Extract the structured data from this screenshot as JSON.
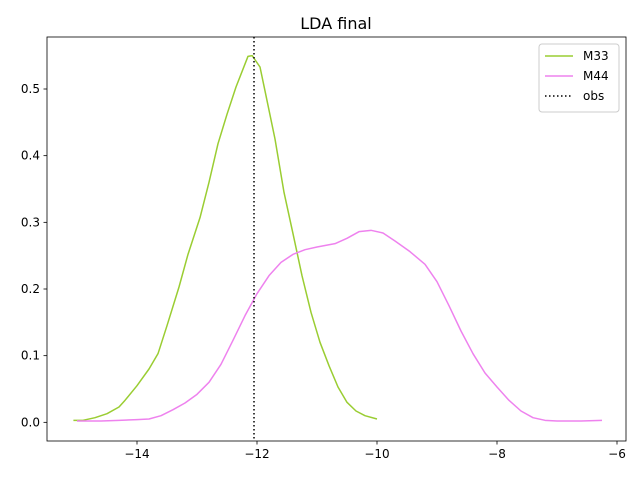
{
  "chart_data": {
    "type": "line",
    "title": "LDA final",
    "xlabel": "",
    "ylabel": "",
    "xlim": [
      -15.5,
      -5.85
    ],
    "ylim": [
      -0.028,
      0.578
    ],
    "xticks": [
      -14,
      -12,
      -10,
      -8,
      -6
    ],
    "xtick_labels": [
      "−14",
      "−12",
      "−10",
      "−8",
      "−6"
    ],
    "yticks": [
      0.0,
      0.1,
      0.2,
      0.3,
      0.4,
      0.5
    ],
    "ytick_labels": [
      "0.0",
      "0.1",
      "0.2",
      "0.3",
      "0.4",
      "0.5"
    ],
    "grid": false,
    "legend_position": "top-right",
    "series": [
      {
        "name": "M33",
        "color": "#9acd32",
        "style": "solid",
        "points": [
          [
            -15.06,
            0.003
          ],
          [
            -14.9,
            0.003
          ],
          [
            -14.7,
            0.007
          ],
          [
            -14.5,
            0.013
          ],
          [
            -14.3,
            0.023
          ],
          [
            -14.2,
            0.033
          ],
          [
            -14.0,
            0.055
          ],
          [
            -13.8,
            0.08
          ],
          [
            -13.65,
            0.103
          ],
          [
            -13.5,
            0.145
          ],
          [
            -13.3,
            0.203
          ],
          [
            -13.15,
            0.252
          ],
          [
            -12.95,
            0.307
          ],
          [
            -12.8,
            0.36
          ],
          [
            -12.65,
            0.418
          ],
          [
            -12.5,
            0.462
          ],
          [
            -12.35,
            0.503
          ],
          [
            -12.15,
            0.549
          ],
          [
            -12.08,
            0.55
          ],
          [
            -11.95,
            0.533
          ],
          [
            -11.85,
            0.49
          ],
          [
            -11.7,
            0.425
          ],
          [
            -11.55,
            0.345
          ],
          [
            -11.4,
            0.283
          ],
          [
            -11.25,
            0.22
          ],
          [
            -11.1,
            0.165
          ],
          [
            -10.95,
            0.12
          ],
          [
            -10.8,
            0.085
          ],
          [
            -10.65,
            0.053
          ],
          [
            -10.5,
            0.03
          ],
          [
            -10.35,
            0.017
          ],
          [
            -10.2,
            0.01
          ],
          [
            -10.0,
            0.005
          ]
        ]
      },
      {
        "name": "M44",
        "color": "#ee82ee",
        "style": "solid",
        "points": [
          [
            -15.0,
            0.002
          ],
          [
            -14.6,
            0.002
          ],
          [
            -14.3,
            0.003
          ],
          [
            -14.0,
            0.004
          ],
          [
            -13.8,
            0.005
          ],
          [
            -13.6,
            0.01
          ],
          [
            -13.4,
            0.019
          ],
          [
            -13.2,
            0.029
          ],
          [
            -13.0,
            0.042
          ],
          [
            -12.8,
            0.06
          ],
          [
            -12.6,
            0.087
          ],
          [
            -12.4,
            0.123
          ],
          [
            -12.2,
            0.16
          ],
          [
            -12.0,
            0.193
          ],
          [
            -11.8,
            0.22
          ],
          [
            -11.6,
            0.24
          ],
          [
            -11.4,
            0.252
          ],
          [
            -11.2,
            0.259
          ],
          [
            -11.0,
            0.263
          ],
          [
            -10.7,
            0.268
          ],
          [
            -10.5,
            0.276
          ],
          [
            -10.3,
            0.286
          ],
          [
            -10.1,
            0.288
          ],
          [
            -9.9,
            0.284
          ],
          [
            -9.7,
            0.272
          ],
          [
            -9.45,
            0.256
          ],
          [
            -9.2,
            0.237
          ],
          [
            -9.0,
            0.211
          ],
          [
            -8.8,
            0.175
          ],
          [
            -8.6,
            0.137
          ],
          [
            -8.4,
            0.103
          ],
          [
            -8.2,
            0.074
          ],
          [
            -8.0,
            0.053
          ],
          [
            -7.8,
            0.033
          ],
          [
            -7.6,
            0.017
          ],
          [
            -7.4,
            0.007
          ],
          [
            -7.2,
            0.003
          ],
          [
            -7.0,
            0.002
          ],
          [
            -6.6,
            0.002
          ],
          [
            -6.25,
            0.003
          ]
        ]
      }
    ],
    "vlines": [
      {
        "name": "obs",
        "x": -12.05,
        "color": "#000000",
        "style": "dotted"
      }
    ]
  }
}
